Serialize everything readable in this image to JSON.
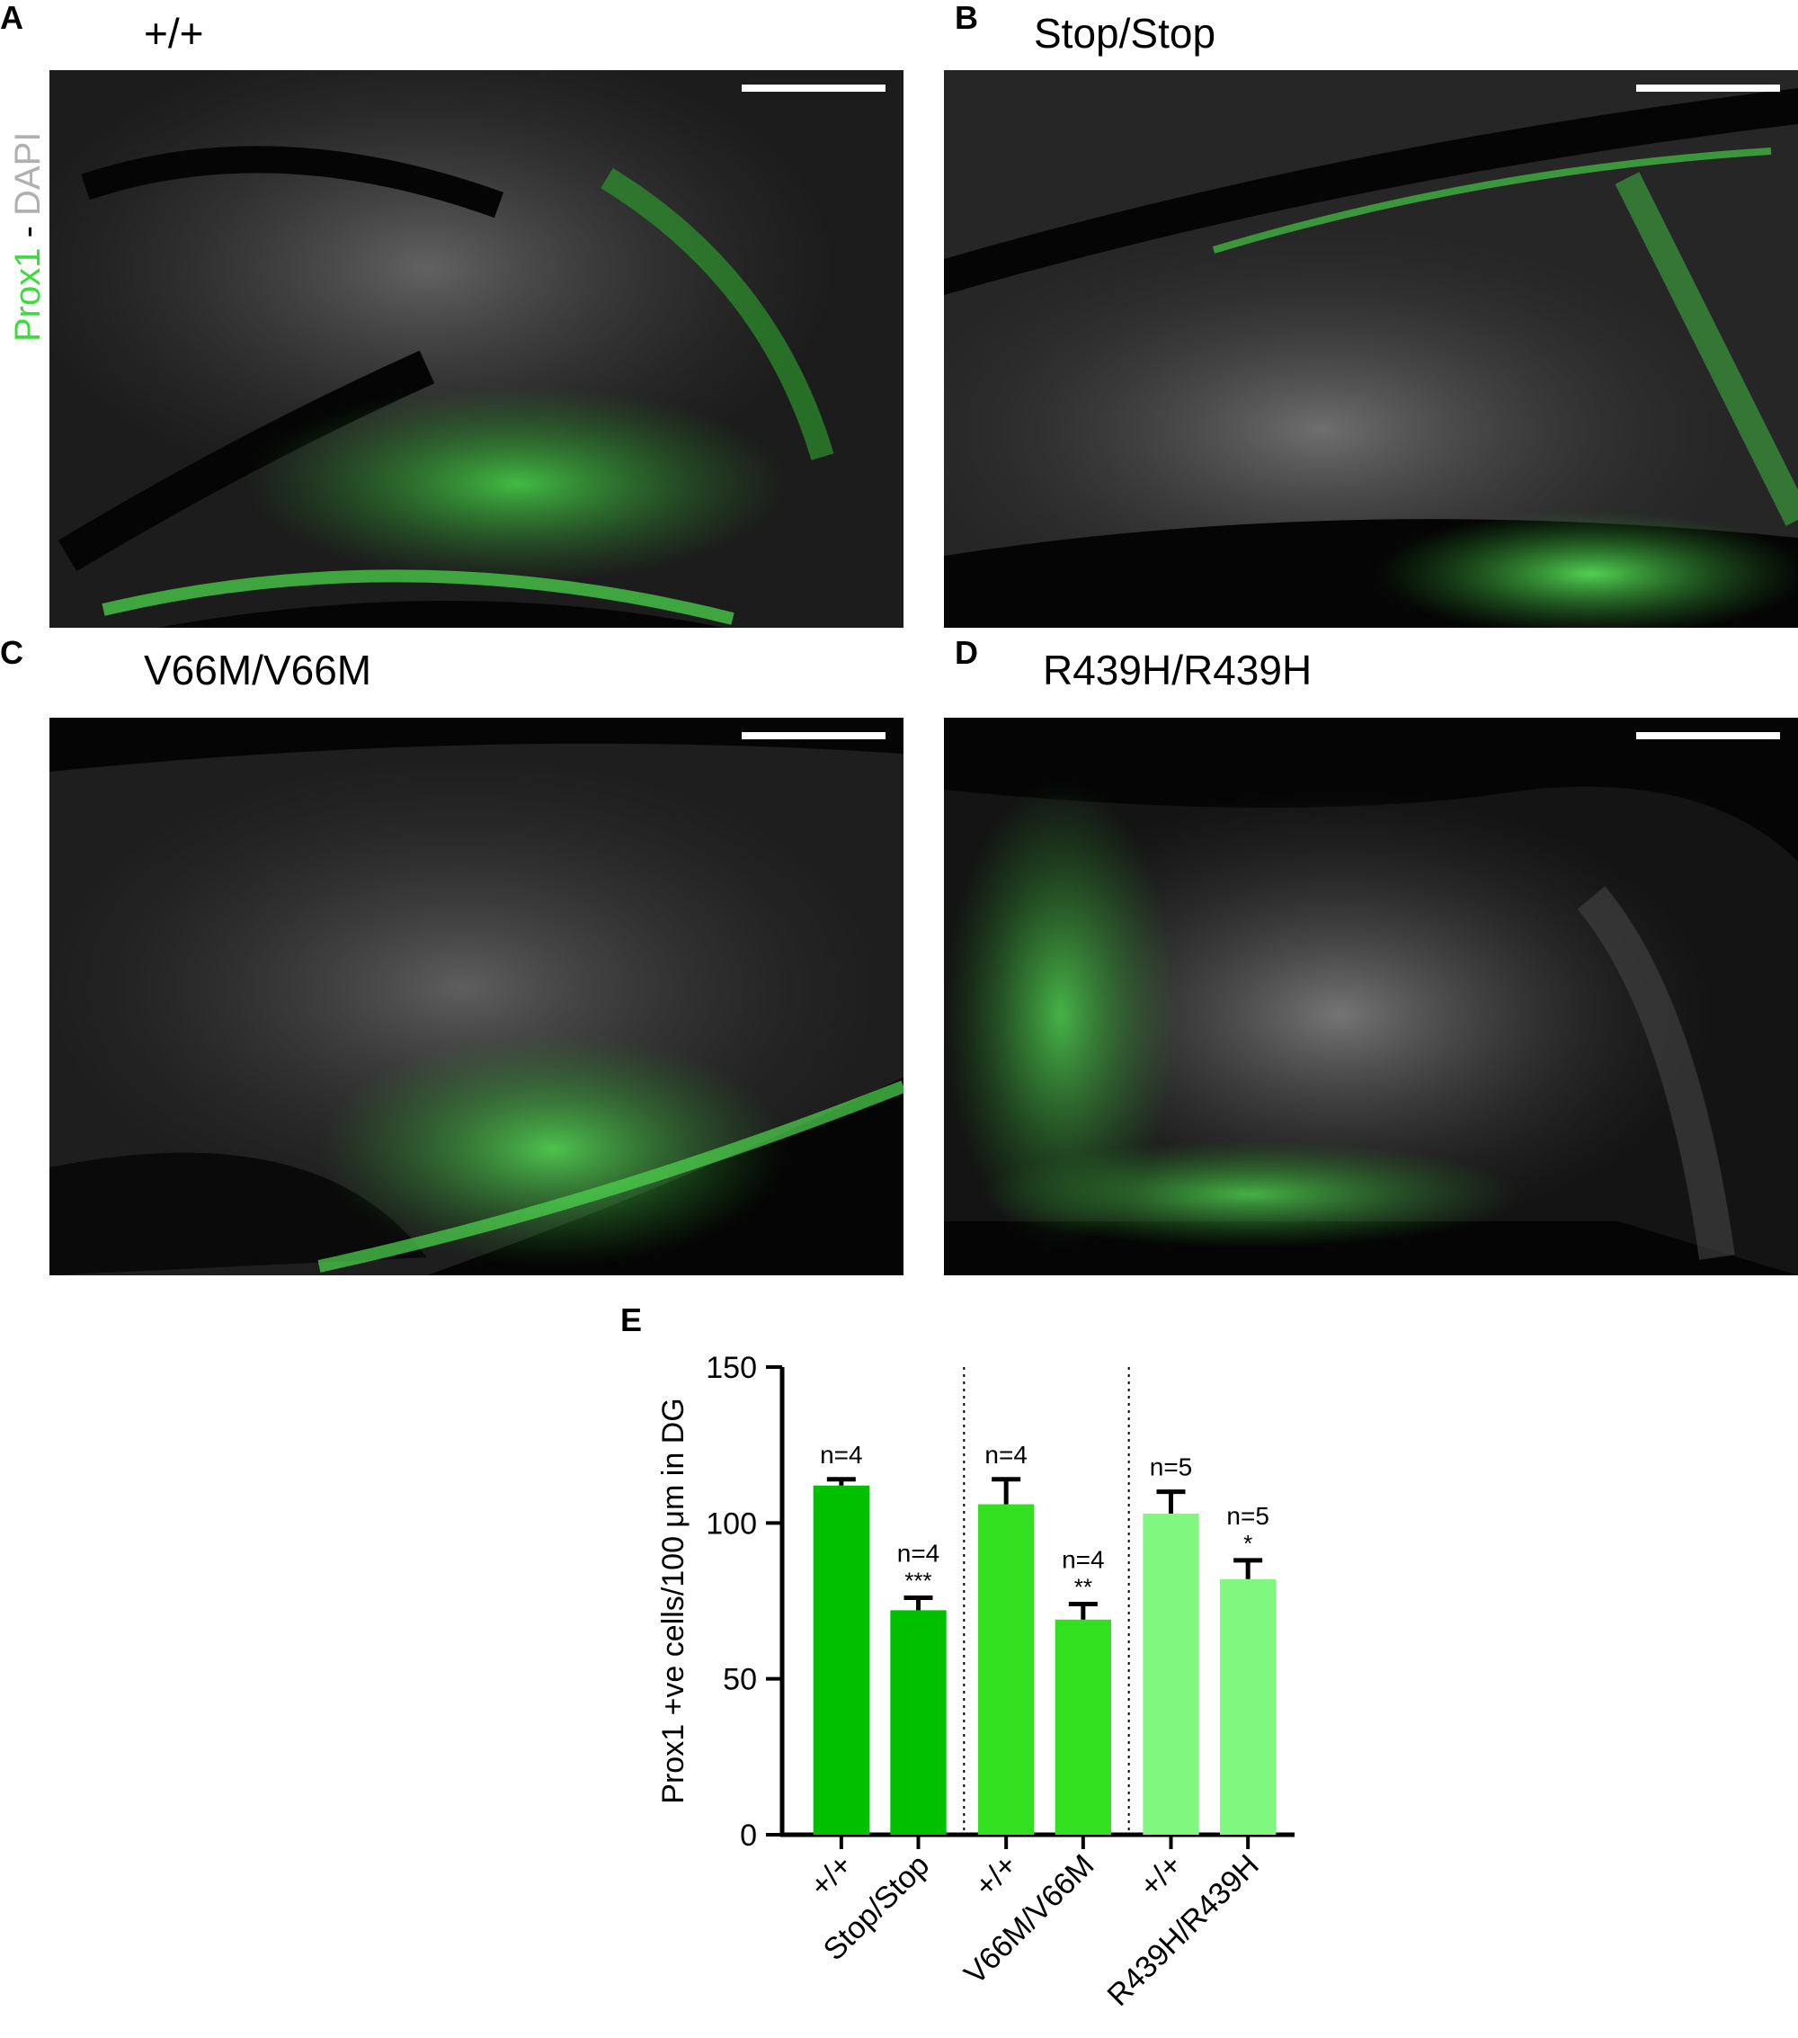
{
  "stain_label": {
    "green": "Prox1",
    "separator": " - ",
    "gray": "DAPI",
    "green_color": "#3ddc3d",
    "gray_color": "#b0b0b0"
  },
  "panels": [
    {
      "letter": "A",
      "title": "+/+"
    },
    {
      "letter": "B",
      "title": "Stop/Stop"
    },
    {
      "letter": "C",
      "title": "V66M/V66M"
    },
    {
      "letter": "D",
      "title": "R439H/R439H"
    }
  ],
  "panel_e_letter": "E",
  "chart_data": {
    "type": "bar",
    "ylabel": "Prox1 +ve cells/100 μm in DG",
    "xlabel": "",
    "ylim": [
      0,
      150
    ],
    "yticks": [
      0,
      50,
      100,
      150
    ],
    "categories": [
      "+/+",
      "Stop/Stop",
      "+/+",
      "V66M/V66M",
      "+/+",
      "R439H/R439H"
    ],
    "values": [
      112,
      72,
      106,
      69,
      103,
      82
    ],
    "errors": [
      2,
      4,
      8,
      5,
      7,
      6
    ],
    "n_labels": [
      "n=4",
      "n=4",
      "n=4",
      "n=4",
      "n=5",
      "n=5"
    ],
    "significance": [
      "",
      "***",
      "",
      "**",
      "",
      "*"
    ],
    "colors": [
      "#00c000",
      "#00c000",
      "#33e01f",
      "#33e01f",
      "#80f77f",
      "#80f77f"
    ],
    "grid": false,
    "group_separators": "dotted"
  }
}
